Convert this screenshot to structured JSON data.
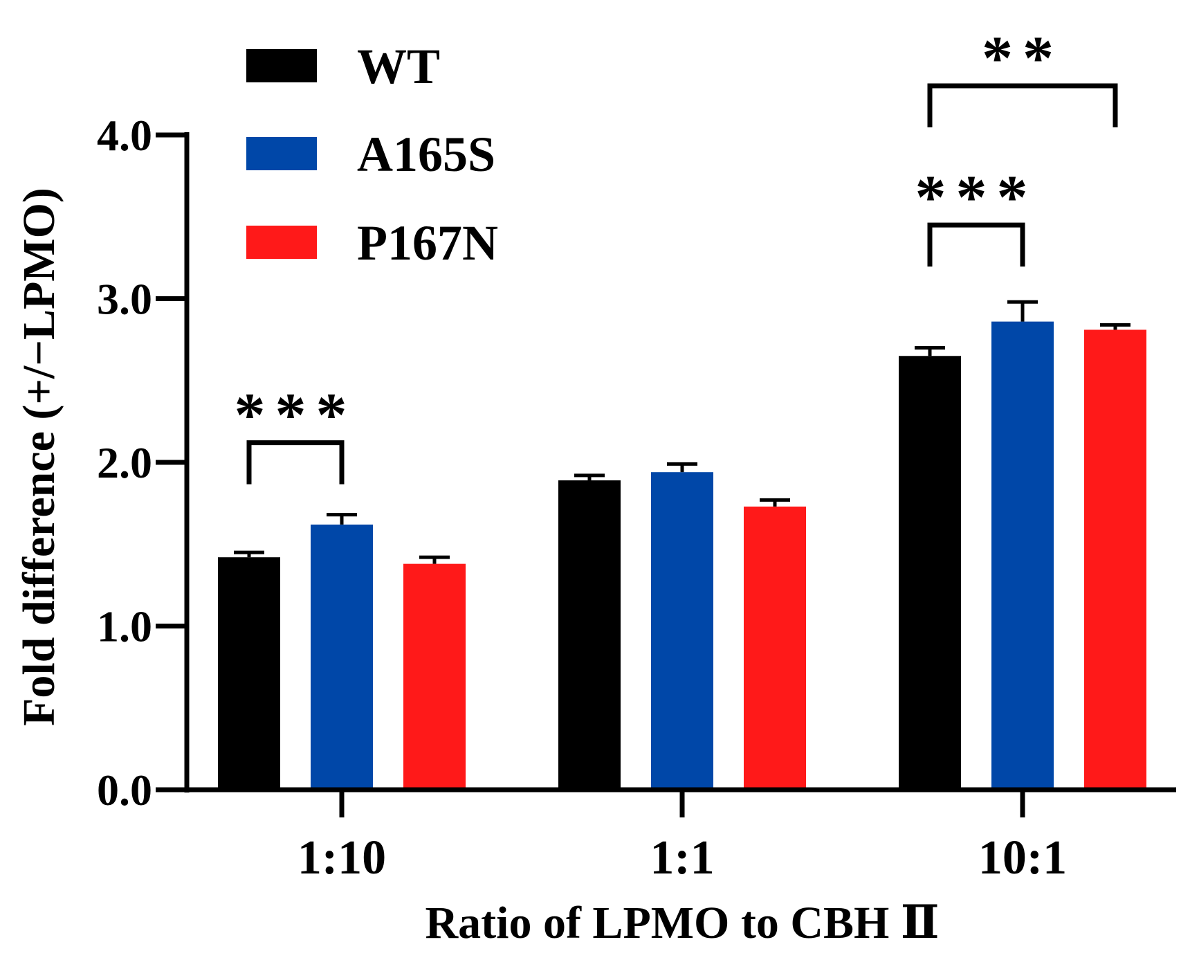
{
  "chart_data": {
    "type": "bar",
    "title": "",
    "xlabel": "Ratio of LPMO to CBH Ⅱ",
    "ylabel": "Fold difference (+/−LPMO)",
    "ylim": [
      0,
      4
    ],
    "yticks": [
      0,
      1,
      2,
      3,
      4
    ],
    "ytick_labels": [
      "0.0",
      "1.0",
      "2.0",
      "3.0",
      "4.0"
    ],
    "categories": [
      "1:10",
      "1:1",
      "10:1"
    ],
    "series": [
      {
        "name": "WT",
        "color": "#000000",
        "values": [
          1.42,
          1.89,
          2.65
        ],
        "errors": [
          0.03,
          0.03,
          0.05
        ]
      },
      {
        "name": "A165S",
        "color": "#0047A8",
        "values": [
          1.62,
          1.94,
          2.86
        ],
        "errors": [
          0.06,
          0.05,
          0.12
        ]
      },
      {
        "name": "P167N",
        "color": "#FF1919",
        "values": [
          1.38,
          1.73,
          2.81
        ],
        "errors": [
          0.04,
          0.04,
          0.03
        ]
      }
    ],
    "legend_position": "top-left",
    "significance": [
      {
        "category": "1:10",
        "from_series": 0,
        "to_series": 1,
        "label": "***",
        "level": 2.12
      },
      {
        "category": "10:1",
        "from_series": 0,
        "to_series": 1,
        "label": "***",
        "level": 3.45
      },
      {
        "category": "10:1",
        "from_series": 0,
        "to_series": 2,
        "label": "**",
        "level": 4.3
      }
    ]
  }
}
